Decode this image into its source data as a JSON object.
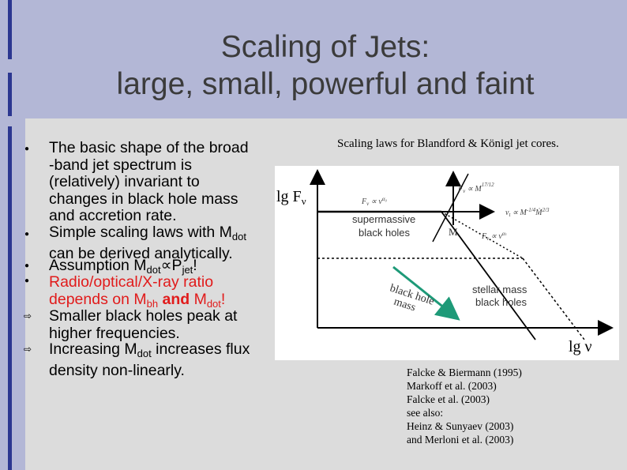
{
  "slide": {
    "title_line1": "Scaling of Jets:",
    "title_line2": "large, small, powerful and faint"
  },
  "bullets": {
    "b1": [
      "The basic shape of the broad",
      "-band jet spectrum is",
      "(relatively) invariant to",
      "changes in black hole mass",
      "and accretion rate."
    ],
    "b2_l1": "Simple scaling laws with M",
    "b2_l1_sub": "dot",
    "b2_l2": "can be derived analytically.",
    "b3_a": "Assumption M",
    "b3_sub1": "dot",
    "b3_sym": "∝P",
    "b3_sub2": "jet",
    "b3_end": "!",
    "b4_l1": "Radio/optical/X-ray ratio",
    "b4_l2a": "depends on M",
    "b4_sub1": "bh",
    "b4_and": " and ",
    "b4_l2b": "M",
    "b4_sub2": "dot",
    "b4_end": "!",
    "b5": [
      "Smaller black holes peak at",
      "higher frequencies."
    ],
    "b6_l1a": "Increasing M",
    "b6_sub": "dot",
    "b6_l1b": " increases flux",
    "b6_l2": "density non-linearly."
  },
  "figure": {
    "caption": "Scaling laws for Blandford & Königl jet cores.",
    "y_axis_label": "lg F",
    "y_axis_sub": "ν",
    "x_axis_label": "lg ν",
    "label_supermassive": [
      "supermassive",
      "black holes"
    ],
    "label_stellar": [
      "stellar mass",
      "black holes"
    ],
    "label_black_hole_mass": [
      "black hole",
      "mass"
    ],
    "label_M": "M",
    "eq_fv_alpha0": "F",
    "eq_fv_top": "F",
    "eq_nu": "ν",
    "eq_fv_alpha": "F"
  },
  "references": [
    "Falcke & Biermann (1995)",
    "Markoff et al. (2003)",
    "Falcke et al. (2003)",
    "see also:",
    "Heinz & Sunyaev (2003)",
    "and Merloni et al. (2003)"
  ]
}
